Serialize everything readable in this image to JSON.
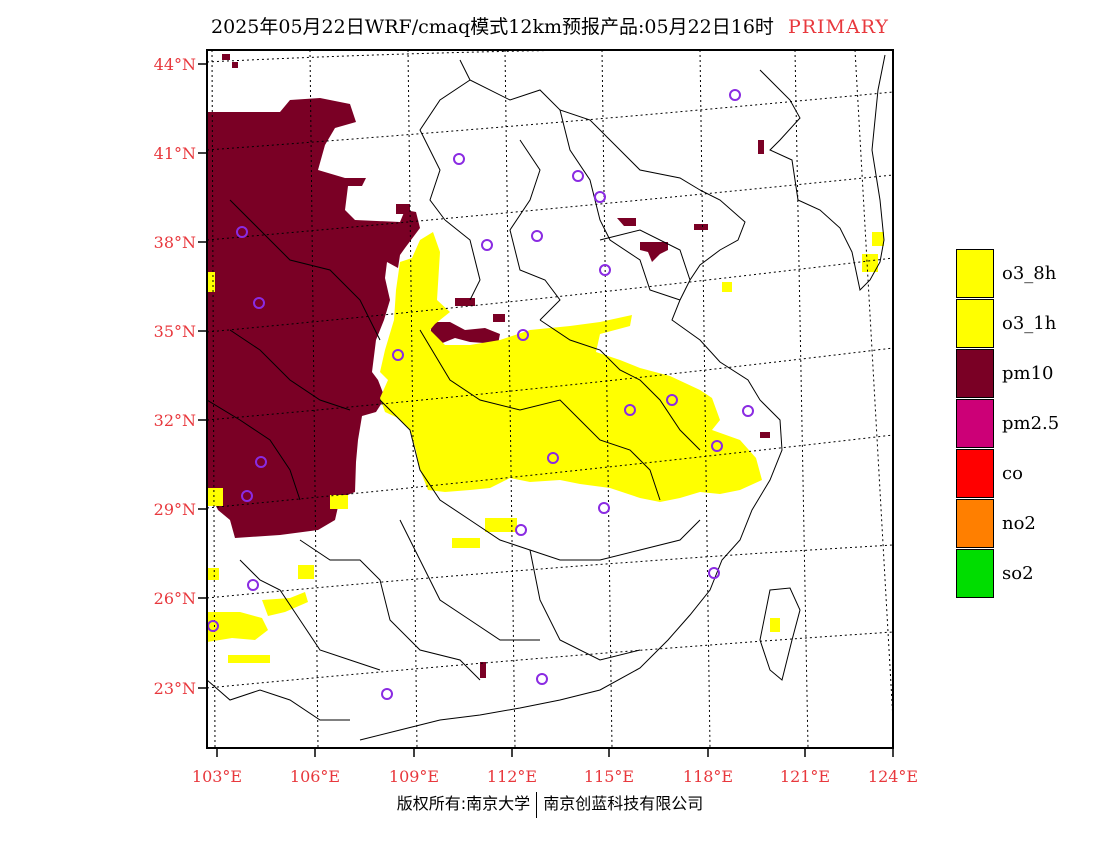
{
  "header": {
    "title": "2025年05月22日WRF/cmaq模式12km预报产品:05月22日16时",
    "tag": "PRIMARY"
  },
  "axes": {
    "lat_labels": [
      "44°N",
      "41°N",
      "38°N",
      "35°N",
      "32°N",
      "29°N",
      "26°N",
      "23°N"
    ],
    "lon_labels": [
      "103°E",
      "106°E",
      "109°E",
      "112°E",
      "115°E",
      "118°E",
      "121°E",
      "124°E"
    ]
  },
  "legend": [
    {
      "label": "o3_8h",
      "color": "#ffff00"
    },
    {
      "label": "o3_1h",
      "color": "#ffff00"
    },
    {
      "label": "pm10",
      "color": "#7a0025"
    },
    {
      "label": "pm2.5",
      "color": "#cc0077"
    },
    {
      "label": "co",
      "color": "#ff0000"
    },
    {
      "label": "no2",
      "color": "#ff7f00"
    },
    {
      "label": "so2",
      "color": "#00dd00"
    }
  ],
  "footer": {
    "left": "版权所有:南京大学",
    "right": "南京创蓝科技有限公司"
  },
  "colors": {
    "pm10": "#7a0025",
    "ozone": "#ffff00",
    "station_ring": "#8a2be2",
    "axis_label": "#e8383d"
  }
}
